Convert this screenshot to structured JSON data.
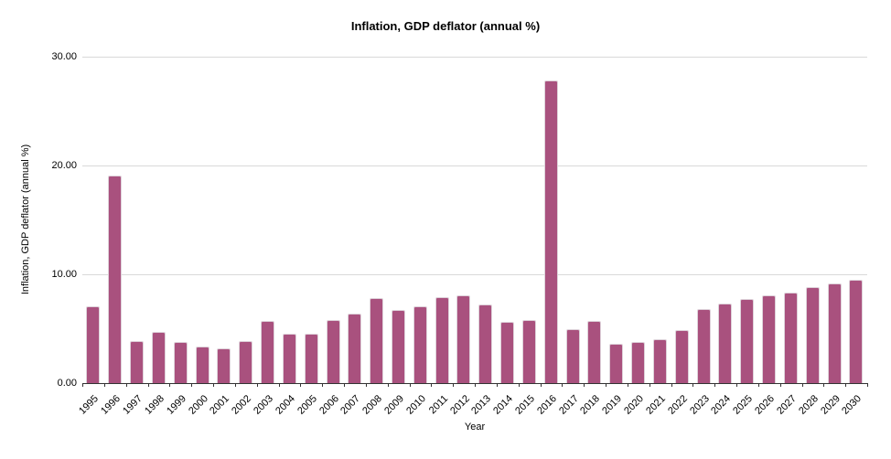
{
  "chart_data": {
    "type": "bar",
    "title": "Inflation, GDP deflator (annual %)",
    "xlabel": "Year",
    "ylabel": "Inflation, GDP deflator (annual %)",
    "categories": [
      "1995",
      "1996",
      "1997",
      "1998",
      "1999",
      "2000",
      "2001",
      "2002",
      "2003",
      "2004",
      "2005",
      "2006",
      "2007",
      "2008",
      "2009",
      "2010",
      "2011",
      "2012",
      "2013",
      "2014",
      "2015",
      "2016",
      "2017",
      "2018",
      "2019",
      "2020",
      "2021",
      "2022",
      "2023",
      "2024",
      "2025",
      "2026",
      "2027",
      "2028",
      "2029",
      "2030"
    ],
    "values": [
      7.1,
      19.1,
      3.85,
      4.7,
      3.75,
      3.35,
      3.2,
      3.9,
      5.7,
      4.55,
      4.5,
      5.8,
      6.4,
      7.8,
      6.7,
      7.1,
      7.9,
      8.1,
      7.2,
      5.6,
      5.8,
      27.8,
      4.95,
      5.7,
      3.6,
      3.8,
      4.05,
      4.9,
      6.8,
      7.3,
      7.75,
      8.05,
      8.35,
      8.8,
      9.15,
      9.5
    ],
    "ylim": [
      0,
      30
    ],
    "ytick_values": [
      0,
      10,
      20,
      30
    ],
    "ytick_labels": [
      "0.00",
      "10.00",
      "20.00",
      "30.00"
    ],
    "grid": "horizontal",
    "legend": null,
    "colors": {
      "bar": "#a9517e",
      "bar_border": "#ded2da",
      "gridline": "#d9d9d9",
      "axis_line": "#333333",
      "text": "#000000"
    }
  }
}
